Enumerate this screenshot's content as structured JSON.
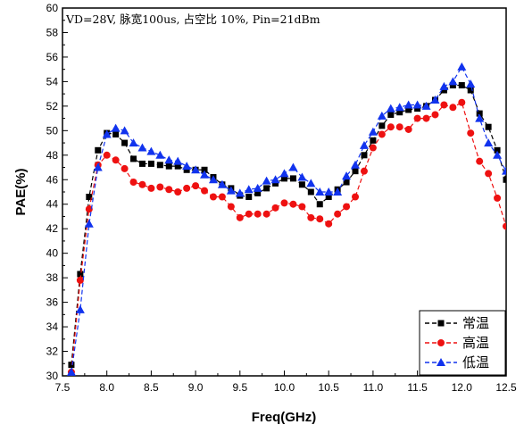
{
  "chart_data": {
    "type": "line",
    "title": "",
    "annotation": "VD=28V, 脉宽100us, 占空比 10%, Pin=21dBm",
    "xlabel": "Freq(GHz)",
    "ylabel": "PAE(%)",
    "xlim": [
      7.5,
      12.5
    ],
    "ylim": [
      30,
      60
    ],
    "xticks": [
      7.5,
      8.0,
      8.5,
      9.0,
      9.5,
      10.0,
      10.5,
      11.0,
      11.5,
      12.0,
      12.5
    ],
    "xtick_labels": [
      "7.5",
      "8.0",
      "8.5",
      "9.0",
      "9.5",
      "10.0",
      "10.5",
      "11.0",
      "11.5",
      "12.0",
      "12.5"
    ],
    "yticks": [
      30,
      32,
      34,
      36,
      38,
      40,
      42,
      44,
      46,
      48,
      50,
      52,
      54,
      56,
      58,
      60
    ],
    "ytick_labels": [
      "30",
      "32",
      "34",
      "36",
      "38",
      "40",
      "42",
      "44",
      "46",
      "48",
      "50",
      "52",
      "54",
      "56",
      "58",
      "60"
    ],
    "grid": false,
    "legend_position": "bottom-right",
    "x": [
      7.6,
      7.7,
      7.8,
      7.9,
      8.0,
      8.1,
      8.2,
      8.3,
      8.4,
      8.5,
      8.6,
      8.7,
      8.8,
      8.9,
      9.0,
      9.1,
      9.2,
      9.3,
      9.4,
      9.5,
      9.6,
      9.7,
      9.8,
      9.9,
      10.0,
      10.1,
      10.2,
      10.3,
      10.4,
      10.5,
      10.6,
      10.7,
      10.8,
      10.9,
      11.0,
      11.1,
      11.2,
      11.3,
      11.4,
      11.5,
      11.6,
      11.7,
      11.8,
      11.9,
      12.0,
      12.1,
      12.2,
      12.3,
      12.4,
      12.5
    ],
    "series": [
      {
        "name": "常温",
        "color": "#000000",
        "marker": "square",
        "values": [
          30.9,
          38.3,
          44.6,
          48.4,
          49.8,
          49.7,
          49.0,
          47.7,
          47.3,
          47.3,
          47.2,
          47.1,
          47.1,
          46.8,
          46.8,
          46.8,
          46.2,
          45.6,
          45.3,
          44.7,
          44.6,
          44.9,
          45.3,
          45.7,
          46.1,
          46.1,
          45.6,
          45.0,
          44.0,
          44.6,
          45.2,
          45.8,
          46.7,
          48.0,
          49.2,
          50.4,
          51.3,
          51.5,
          51.7,
          51.8,
          52.0,
          52.5,
          53.3,
          53.7,
          53.7,
          53.3,
          51.4,
          50.3,
          48.4,
          46.0
        ]
      },
      {
        "name": "高温",
        "color": "#ee1111",
        "marker": "circle",
        "values": [
          30.3,
          37.8,
          43.6,
          47.2,
          48.0,
          47.6,
          46.9,
          45.8,
          45.6,
          45.3,
          45.4,
          45.2,
          45.0,
          45.3,
          45.5,
          45.1,
          44.6,
          44.6,
          43.8,
          42.9,
          43.2,
          43.2,
          43.2,
          43.7,
          44.1,
          44.0,
          43.8,
          42.9,
          42.8,
          42.4,
          43.2,
          43.8,
          44.6,
          46.7,
          48.6,
          49.7,
          50.3,
          50.3,
          50.1,
          51.0,
          51.0,
          51.3,
          52.1,
          51.9,
          52.3,
          49.8,
          47.5,
          46.5,
          44.5,
          42.2
        ]
      },
      {
        "name": "低温",
        "color": "#1133ee",
        "marker": "triangle",
        "values": [
          30.3,
          35.4,
          42.4,
          47.0,
          49.7,
          50.2,
          50.0,
          49.0,
          48.6,
          48.3,
          48.0,
          47.6,
          47.5,
          47.1,
          46.8,
          46.4,
          46.0,
          45.6,
          45.1,
          44.9,
          45.2,
          45.3,
          45.9,
          46.0,
          46.5,
          47.0,
          46.2,
          45.7,
          45.0,
          45.0,
          45.0,
          46.3,
          47.2,
          48.8,
          49.9,
          51.2,
          51.8,
          51.9,
          52.1,
          52.1,
          52.0,
          52.5,
          53.6,
          54.0,
          55.2,
          53.8,
          51.0,
          49.0,
          48.0,
          46.7
        ]
      }
    ]
  }
}
